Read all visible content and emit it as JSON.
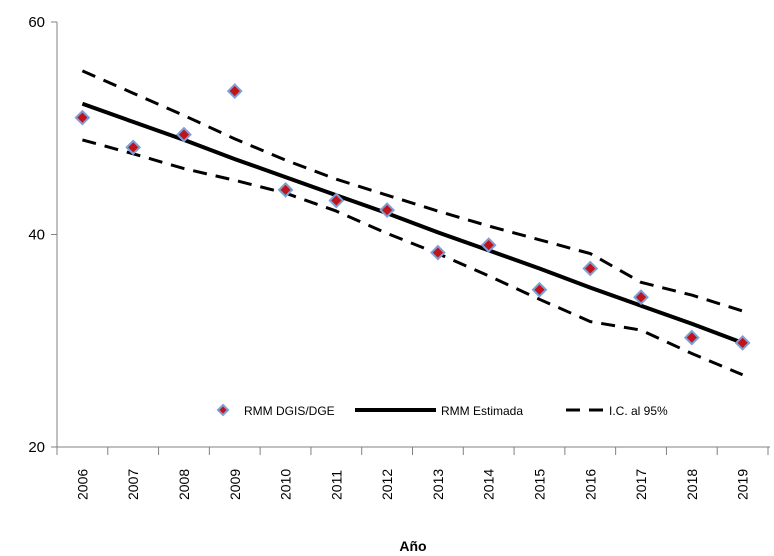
{
  "chart_data": {
    "type": "line",
    "title": "",
    "xlabel": "Año",
    "ylabel": "",
    "ylim": [
      20,
      60
    ],
    "yticks": [
      "20",
      "40",
      "60"
    ],
    "categories": [
      "2006",
      "2007",
      "2008",
      "2009",
      "2010",
      "2011",
      "2012",
      "2013",
      "2014",
      "2015",
      "2016",
      "2017",
      "2018",
      "2019"
    ],
    "series": [
      {
        "name": "RMM DGIS/DGE",
        "kind": "scatter",
        "marker": "diamond",
        "fill_color": "#c0141c",
        "edge_color": "#7f9fd4",
        "values": [
          51.0,
          48.2,
          49.4,
          53.5,
          44.2,
          43.2,
          42.3,
          38.3,
          39.0,
          34.8,
          36.8,
          34.1,
          30.3,
          29.8
        ]
      },
      {
        "name": "RMM Estimada",
        "kind": "line",
        "line_style": "solid",
        "color": "#000000",
        "values": [
          52.3,
          50.6,
          48.9,
          47.1,
          45.4,
          43.7,
          42.0,
          40.2,
          38.5,
          36.8,
          35.0,
          33.3,
          31.6,
          29.8
        ]
      },
      {
        "name": "I.C. al 95%",
        "kind": "line",
        "line_style": "dashed",
        "color": "#000000",
        "values": [
          55.4,
          53.3,
          51.2,
          49.0,
          47.0,
          45.2,
          43.7,
          42.2,
          40.8,
          39.5,
          38.2,
          35.5,
          34.3,
          32.8
        ]
      },
      {
        "name": "",
        "kind": "line",
        "line_style": "dashed",
        "color": "#000000",
        "values": [
          48.9,
          47.6,
          46.2,
          45.1,
          43.9,
          42.2,
          40.1,
          38.2,
          36.1,
          33.9,
          31.8,
          31.0,
          28.8,
          26.8
        ]
      }
    ],
    "legend": {
      "placement": "bottom-inside",
      "entries": [
        "RMM DGIS/DGE",
        "RMM Estimada",
        "I.C. al 95%"
      ]
    },
    "grid": false
  }
}
